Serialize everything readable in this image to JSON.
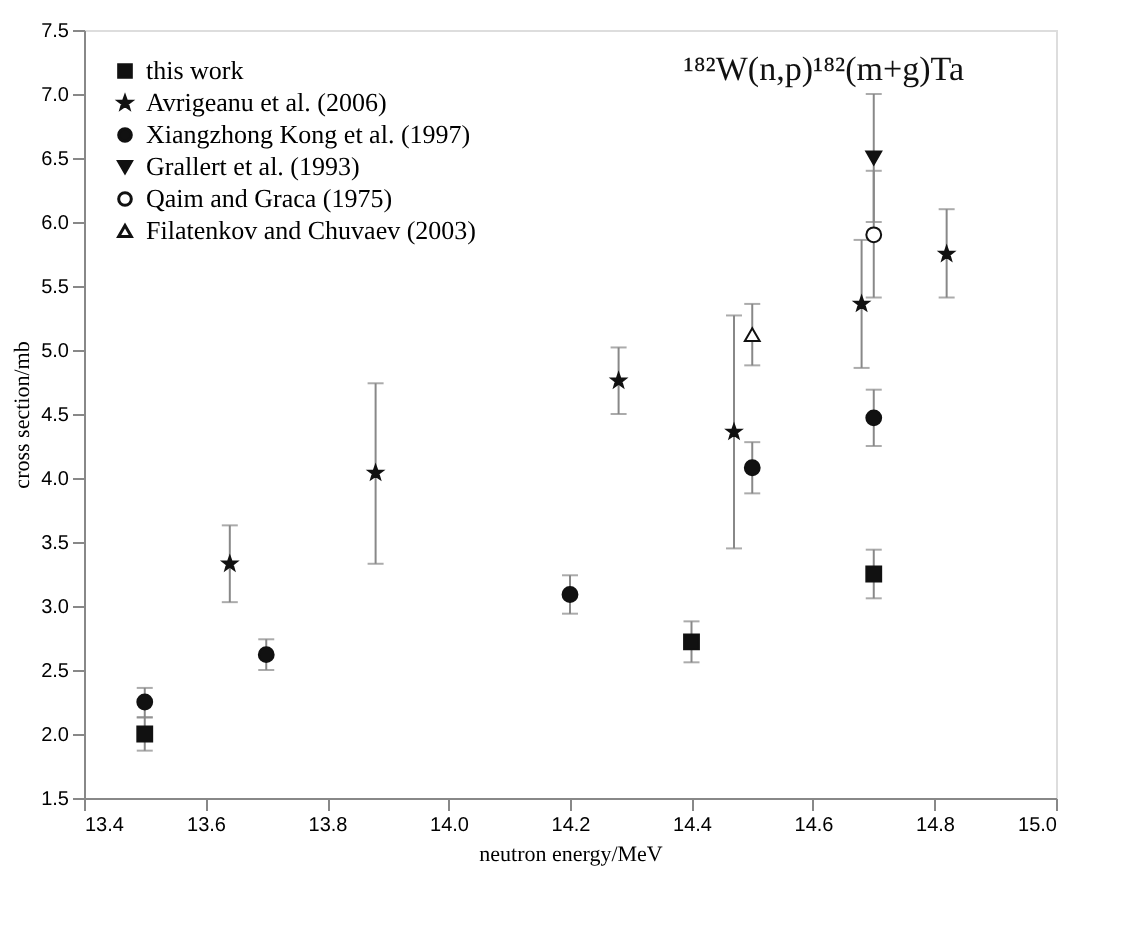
{
  "chart_data": {
    "type": "scatter",
    "xlabel": "neutron energy/MeV",
    "ylabel": "cross section/mb",
    "annotations": [
      "¹⁸²W(n,p)¹⁸²(m+g)Ta"
    ],
    "xlim": [
      13.4,
      15.0
    ],
    "xticks": [
      {
        "value": 13.4,
        "label": "13.4"
      },
      {
        "value": 13.6,
        "label": "13.6"
      },
      {
        "value": 13.8,
        "label": "13.8"
      },
      {
        "value": 14.0,
        "label": "14.0"
      },
      {
        "value": 14.2,
        "label": "14.2"
      },
      {
        "value": 14.4,
        "label": "14.4"
      },
      {
        "value": 14.6,
        "label": "14.6"
      },
      {
        "value": 14.8,
        "label": "14.8"
      },
      {
        "value": 15.0,
        "label": "15.0"
      }
    ],
    "ylim": [
      1.5,
      7.5
    ],
    "yticks": [
      {
        "value": 1.5,
        "label": "1.5"
      },
      {
        "value": 2.0,
        "label": "2.0"
      },
      {
        "value": 2.5,
        "label": "2.5"
      },
      {
        "value": 3.0,
        "label": "3.0"
      },
      {
        "value": 3.5,
        "label": "3.5"
      },
      {
        "value": 4.0,
        "label": "4.0"
      },
      {
        "value": 4.5,
        "label": "4.5"
      },
      {
        "value": 5.0,
        "label": "5.0"
      },
      {
        "value": 5.5,
        "label": "5.5"
      },
      {
        "value": 6.0,
        "label": "6.0"
      },
      {
        "value": 6.5,
        "label": "6.5"
      },
      {
        "value": 7.0,
        "label": "7.0"
      },
      {
        "value": 7.5,
        "label": "7.5"
      }
    ],
    "grid": false,
    "legend": "top left",
    "series": [
      {
        "name": "this work",
        "color": "#111111",
        "marker": "square",
        "x": [
          13.5,
          14.4,
          14.7
        ],
        "values": [
          2.0,
          2.72,
          3.25
        ],
        "errors": [
          [
            1.87,
            2.13
          ],
          [
            2.56,
            2.88
          ],
          [
            3.06,
            3.44
          ]
        ]
      },
      {
        "name": "Avrigeanu et al. (2006)",
        "color": "#111111",
        "marker": "star",
        "x": [
          13.64,
          13.88,
          14.28,
          14.47,
          14.68,
          14.82
        ],
        "values": [
          3.33,
          4.04,
          4.76,
          4.36,
          5.36,
          5.75
        ],
        "errors": [
          [
            3.03,
            3.63
          ],
          [
            3.33,
            4.74
          ],
          [
            4.5,
            5.02
          ],
          [
            3.45,
            5.27
          ],
          [
            4.86,
            5.86
          ],
          [
            5.41,
            6.1
          ]
        ]
      },
      {
        "name": "Xiangzhong Kong et al. (1997)",
        "color": "#111111",
        "marker": "circle",
        "x": [
          13.5,
          13.7,
          14.2,
          14.5,
          14.7
        ],
        "values": [
          2.25,
          2.62,
          3.09,
          4.08,
          4.47
        ],
        "errors": [
          [
            2.13,
            2.36
          ],
          [
            2.5,
            2.74
          ],
          [
            2.94,
            3.24
          ],
          [
            3.88,
            4.28
          ],
          [
            4.25,
            4.69
          ]
        ]
      },
      {
        "name": "Grallert et al. (1993)",
        "color": "#111111",
        "marker": "triangle-down",
        "x": [
          14.7
        ],
        "values": [
          6.5
        ],
        "errors": [
          [
            6.0,
            7.0
          ]
        ]
      },
      {
        "name": "Qaim and Graca (1975)",
        "color": "#ffffff",
        "marker": "circle",
        "x": [
          14.7
        ],
        "values": [
          5.9
        ],
        "errors": [
          [
            5.41,
            6.4
          ]
        ]
      },
      {
        "name": "Filatenkov and Chuvaev (2003)",
        "color": "#ffffff",
        "marker": "triangle",
        "x": [
          14.5
        ],
        "values": [
          5.12
        ],
        "errors": [
          [
            4.88,
            5.36
          ]
        ]
      }
    ]
  }
}
